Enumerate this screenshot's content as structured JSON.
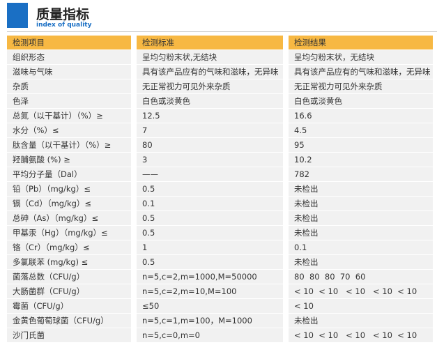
{
  "header": {
    "title": "质量指标",
    "subtitle": "index of quality"
  },
  "table": {
    "columns": [
      "检测项目",
      "检测标准",
      "检测结果"
    ],
    "rows": [
      [
        "组织形态",
        "呈均匀粉末状,无结块",
        "呈均匀粉末状，无结块"
      ],
      [
        "滋味与气味",
        "具有该产品应有的气味和滋味，无异味",
        "具有该产品应有的气味和滋味，无异味"
      ],
      [
        "杂质",
        "无正常视力可见外来杂质",
        "无正常视力可见外来杂质"
      ],
      [
        "色泽",
        "白色或淡黄色",
        "白色或淡黄色"
      ],
      [
        "总氮（以干基计）（%）≥",
        "12.5",
        "16.6"
      ],
      [
        "水分（%）≤",
        "7",
        "4.5"
      ],
      [
        "肽含量（以干基计）（%）≥",
        "80",
        "95"
      ],
      [
        "羟脯氨酸 (%) ≥",
        "3",
        "10.2"
      ],
      [
        "平均分子量（Dal）",
        "——",
        "782"
      ],
      [
        "铅（Pb）（mg/kg）≤",
        "0.5",
        "未检出"
      ],
      [
        "镉（Cd）（mg/kg）≤",
        "0.1",
        "未检出"
      ],
      [
        "总砷（As）（mg/kg）≤",
        "0.5",
        "未检出"
      ],
      [
        "甲基汞（Hg）（mg/kg）≤",
        "0.5",
        "未检出"
      ],
      [
        "铬（Cr）（mg/kg）≤",
        "1",
        "0.1"
      ],
      [
        "多氯联苯 (mg/kg) ≤",
        "0.5",
        "未检出"
      ],
      [
        "菌落总数（CFU/g）",
        "n=5,c=2,m=1000,M=50000",
        "80  80  80  70  60"
      ],
      [
        "大肠菌群（CFU/g）",
        "n=5,c=2,m=10,M=100",
        "< 10  < 10   < 10   < 10  < 10"
      ],
      [
        "霉菌（CFU/g）",
        "≤50",
        "< 10"
      ],
      [
        "金黄色葡萄球菌（CFU/g）",
        "n=5,c=1,m=100，M=1000",
        "未检出"
      ],
      [
        "沙门氏菌",
        "n=5,c=0,m=0",
        "< 10  < 10   < 10   < 10  < 10"
      ]
    ]
  }
}
